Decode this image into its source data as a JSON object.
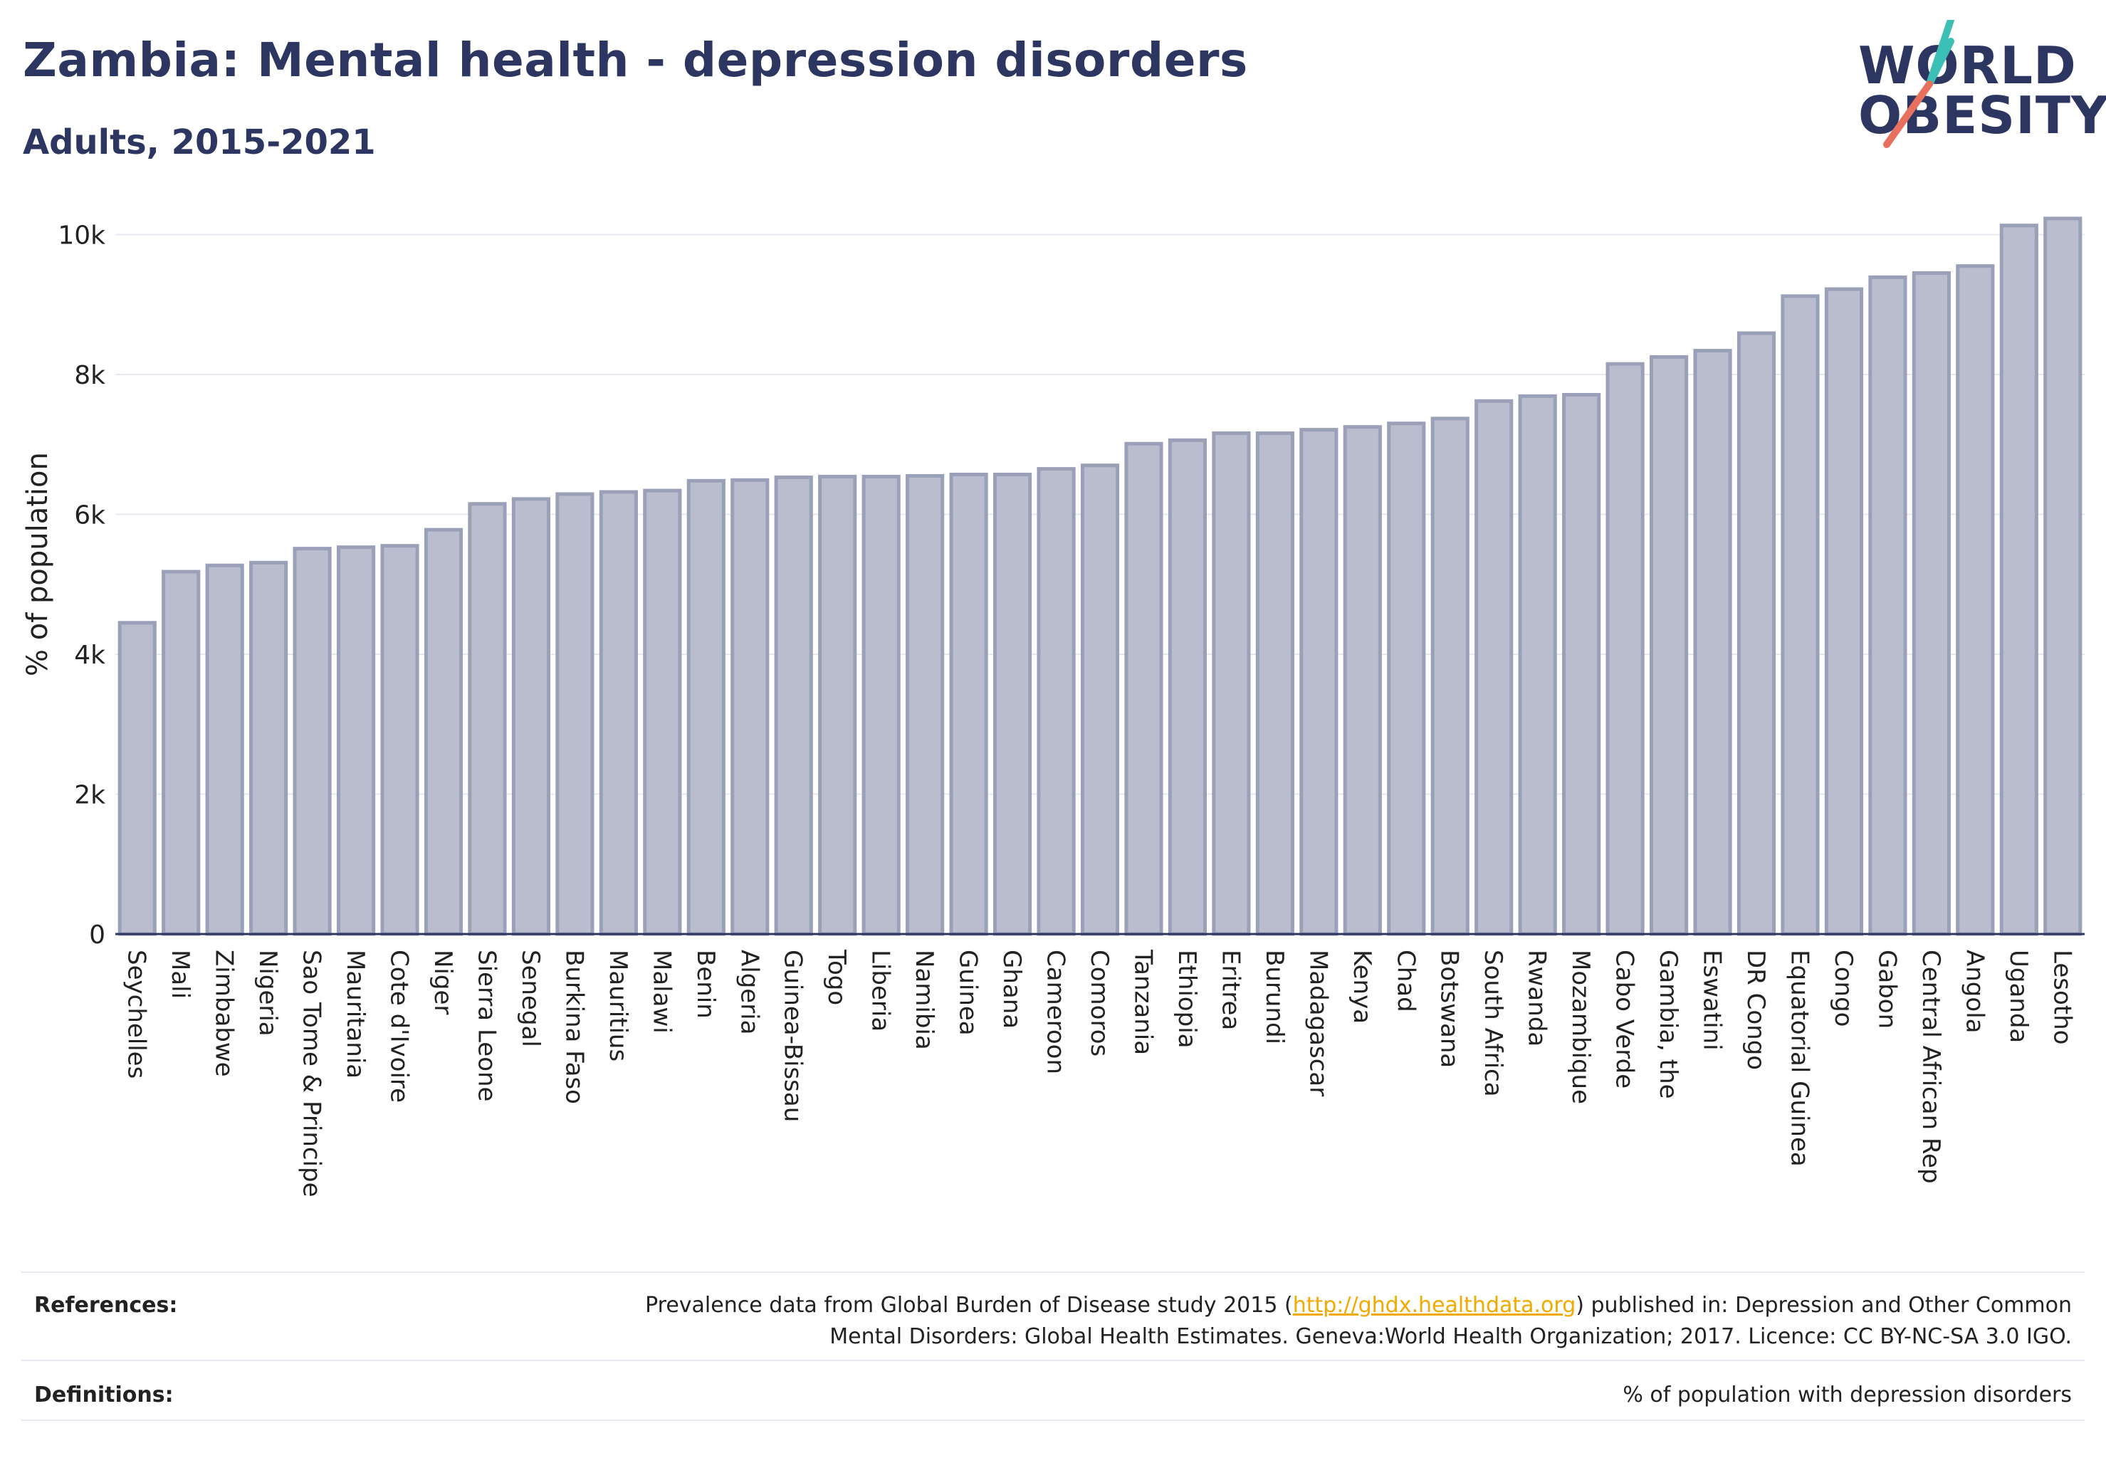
{
  "header": {
    "title": "Zambia: Mental health - depression disorders",
    "subtitle": "Adults, 2015-2021"
  },
  "logo": {
    "line1": "WORLD",
    "line2": "OBESITY"
  },
  "colors": {
    "bar_fill": "#b9bdcd",
    "bar_stroke": "#9aa0b8",
    "title": "#2d3561",
    "link": "#f2a900",
    "logo_slash_top": "#3cbfb4",
    "logo_slash_bottom": "#e8705e"
  },
  "chart_data": {
    "type": "bar",
    "title": "Zambia: Mental health - depression disorders",
    "subtitle": "Adults, 2015-2021",
    "ylabel": "% of population",
    "xlabel": "",
    "ylim": [
      0,
      10300
    ],
    "yticks": [
      0,
      2000,
      4000,
      6000,
      8000,
      10000
    ],
    "ytick_labels": [
      "0",
      "2k",
      "4k",
      "6k",
      "8k",
      "10k"
    ],
    "grid": true,
    "legend": "none",
    "categories": [
      "Seychelles",
      "Mali",
      "Zimbabwe",
      "Nigeria",
      "Sao Tome & Principe",
      "Mauritania",
      "Cote d'Ivoire",
      "Niger",
      "Sierra Leone",
      "Senegal",
      "Burkina Faso",
      "Mauritius",
      "Malawi",
      "Benin",
      "Algeria",
      "Guinea-Bissau",
      "Togo",
      "Liberia",
      "Namibia",
      "Guinea",
      "Ghana",
      "Cameroon",
      "Comoros",
      "Tanzania",
      "Ethiopia",
      "Eritrea",
      "Burundi",
      "Madagascar",
      "Kenya",
      "Chad",
      "Botswana",
      "South Africa",
      "Rwanda",
      "Mozambique",
      "Cabo Verde",
      "Gambia, the",
      "Eswatini",
      "DR Congo",
      "Equatorial Guinea",
      "Congo",
      "Gabon",
      "Central African Rep",
      "Angola",
      "Uganda",
      "Lesotho"
    ],
    "values": [
      4450,
      5180,
      5270,
      5310,
      5510,
      5530,
      5550,
      5780,
      6150,
      6220,
      6290,
      6320,
      6340,
      6480,
      6490,
      6530,
      6540,
      6540,
      6550,
      6570,
      6570,
      6650,
      6700,
      7010,
      7060,
      7160,
      7160,
      7210,
      7250,
      7300,
      7370,
      7620,
      7690,
      7710,
      8150,
      8250,
      8340,
      8590,
      9120,
      9220,
      9390,
      9450,
      9550,
      10130,
      10230
    ]
  },
  "footer": {
    "references_label": "References:",
    "references_pre": "Prevalence data from Global Burden of Disease study 2015 (",
    "references_link": "http://ghdx.healthdata.org",
    "references_post": ") published in: Depression and Other Common",
    "references_line2": "Mental Disorders: Global Health Estimates. Geneva:World Health Organization; 2017. Licence: CC BY-NC-SA 3.0 IGO.",
    "definitions_label": "Definitions:",
    "definitions_text": "% of population with depression disorders"
  }
}
